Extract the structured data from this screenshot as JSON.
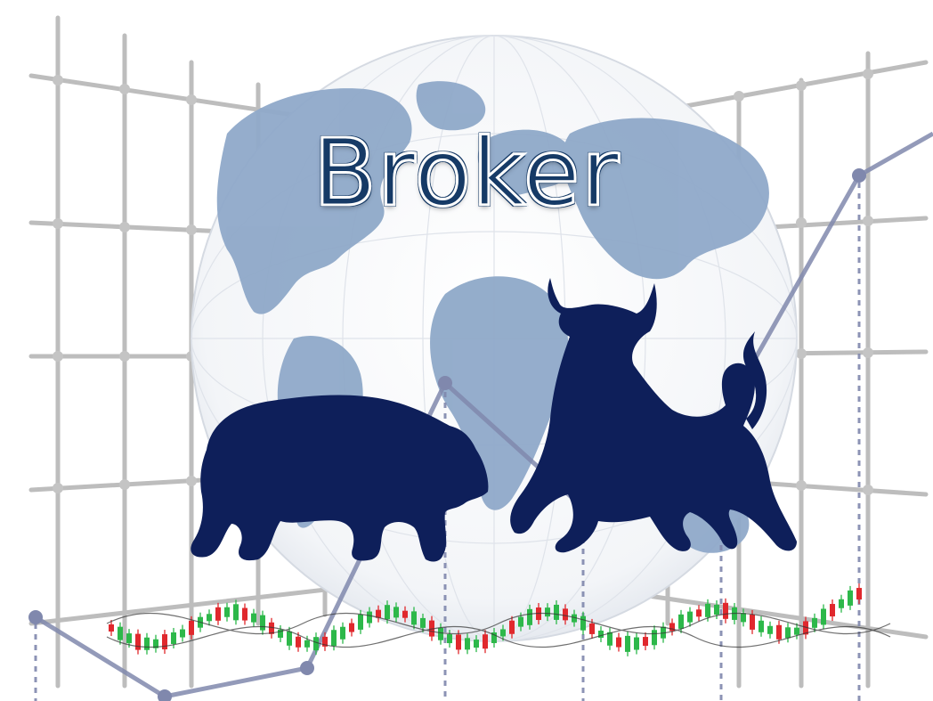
{
  "title": "Broker",
  "colors": {
    "background": "#ffffff",
    "grid": "#b9b9b9",
    "globe_land": "#8fa9c9",
    "globe_lines": "#d6dbe3",
    "silhouette": "#0e1f5a",
    "trend_line": "#7f86ac",
    "title_fill": "#2d5f8f",
    "candle_up": "#2db84a",
    "candle_down": "#e0282d"
  },
  "elements": {
    "bear": "bear-silhouette",
    "bull": "bull-silhouette",
    "globe": "world-globe",
    "candlesticks": "candlestick-chart-decoration",
    "trend": "trend-line-decoration"
  }
}
